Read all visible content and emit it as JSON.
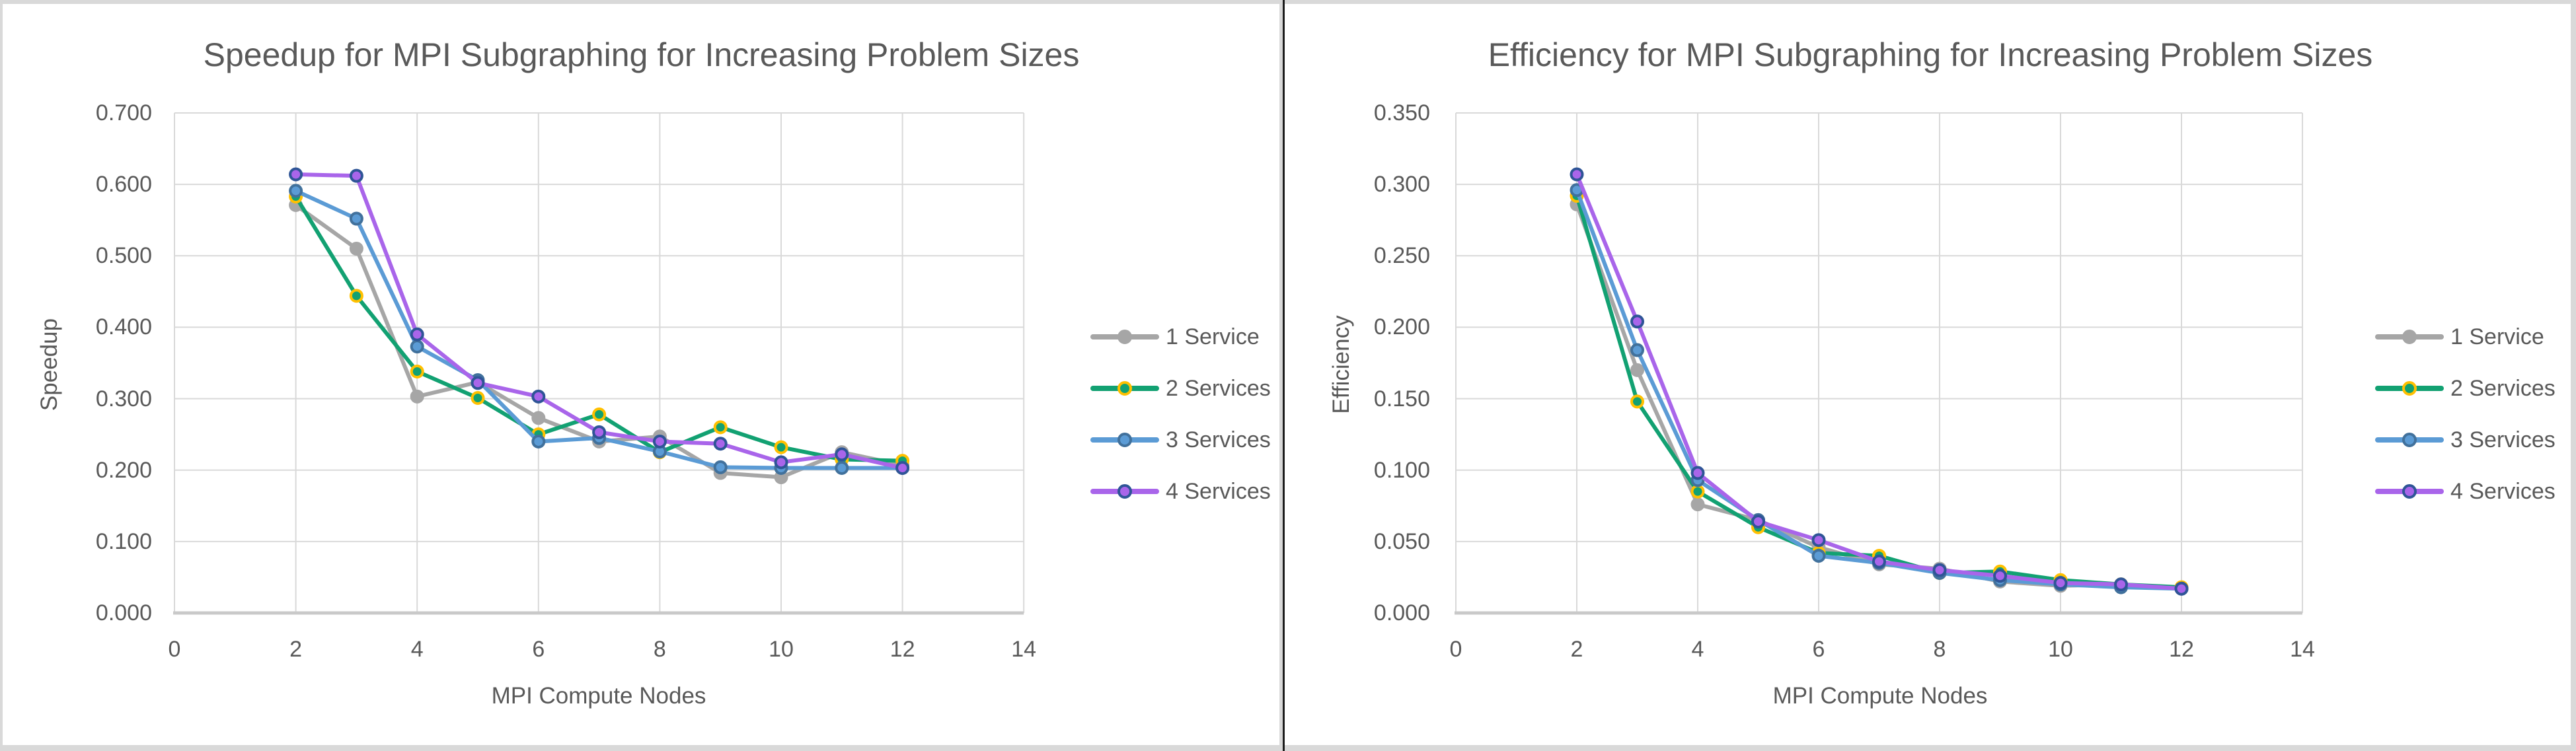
{
  "frame": {
    "background": "#ffffff",
    "border_color": "#d9d9d9",
    "divider_color": "#1c1c1c",
    "text_color": "#595959",
    "gridline_color": "#d9d9d9",
    "axis_line_color": "#c9c9c9"
  },
  "chart_data": [
    {
      "type": "line",
      "title": "Speedup for MPI Subgraphing for Increasing Problem Sizes",
      "x_axis": {
        "label": "MPI Compute Nodes",
        "min": 0,
        "max": 14,
        "ticks": [
          0,
          2,
          4,
          6,
          8,
          10,
          12,
          14
        ]
      },
      "y_axis": {
        "label": "Speedup",
        "min": 0,
        "max": 0.7,
        "tick_step": 0.1,
        "tick_labels": [
          "0.000",
          "0.100",
          "0.200",
          "0.300",
          "0.400",
          "0.500",
          "0.600",
          "0.700"
        ]
      },
      "legend_position": "right",
      "grid": true,
      "x": [
        2,
        3,
        4,
        5,
        6,
        7,
        8,
        9,
        10,
        11,
        12
      ],
      "series": [
        {
          "name": "1 Service",
          "line_color": "#A6A6A6",
          "marker_fill": "#A6A6A6",
          "marker_ring": "#A6A6A6",
          "values": [
            0.571,
            0.51,
            0.303,
            0.323,
            0.273,
            0.24,
            0.247,
            0.196,
            0.19,
            0.225,
            0.207
          ]
        },
        {
          "name": "2 Services",
          "line_color": "#12A172",
          "marker_fill": "#12A172",
          "marker_ring": "#FFC000",
          "values": [
            0.583,
            0.444,
            0.338,
            0.301,
            0.25,
            0.278,
            0.225,
            0.26,
            0.232,
            0.215,
            0.213
          ]
        },
        {
          "name": "3 Services",
          "line_color": "#5B9BD5",
          "marker_fill": "#5B9BD5",
          "marker_ring": "#41719C",
          "values": [
            0.591,
            0.552,
            0.373,
            0.326,
            0.24,
            0.245,
            0.226,
            0.204,
            0.203,
            0.203,
            0.203
          ]
        },
        {
          "name": "4 Services",
          "line_color": "#A965EA",
          "marker_fill": "#A965EA",
          "marker_ring": "#2F5597",
          "values": [
            0.614,
            0.612,
            0.39,
            0.322,
            0.303,
            0.253,
            0.24,
            0.237,
            0.211,
            0.222,
            0.203
          ]
        }
      ]
    },
    {
      "type": "line",
      "title": "Efficiency for MPI Subgraphing for Increasing Problem Sizes",
      "x_axis": {
        "label": "MPI Compute Nodes",
        "min": 0,
        "max": 14,
        "ticks": [
          0,
          2,
          4,
          6,
          8,
          10,
          12,
          14
        ]
      },
      "y_axis": {
        "label": "Efficiency",
        "min": 0,
        "max": 0.35,
        "tick_step": 0.05,
        "tick_labels": [
          "0.000",
          "0.050",
          "0.100",
          "0.150",
          "0.200",
          "0.250",
          "0.300",
          "0.350"
        ]
      },
      "legend_position": "right",
      "grid": true,
      "x": [
        2,
        3,
        4,
        5,
        6,
        7,
        8,
        9,
        10,
        11,
        12
      ],
      "series": [
        {
          "name": "1 Service",
          "line_color": "#A6A6A6",
          "marker_fill": "#A6A6A6",
          "marker_ring": "#A6A6A6",
          "values": [
            0.286,
            0.17,
            0.076,
            0.065,
            0.046,
            0.034,
            0.031,
            0.022,
            0.019,
            0.02,
            0.017
          ]
        },
        {
          "name": "2 Services",
          "line_color": "#12A172",
          "marker_fill": "#12A172",
          "marker_ring": "#FFC000",
          "values": [
            0.292,
            0.148,
            0.085,
            0.06,
            0.042,
            0.04,
            0.028,
            0.029,
            0.023,
            0.02,
            0.018
          ]
        },
        {
          "name": "3 Services",
          "line_color": "#5B9BD5",
          "marker_fill": "#5B9BD5",
          "marker_ring": "#41719C",
          "values": [
            0.296,
            0.184,
            0.093,
            0.065,
            0.04,
            0.035,
            0.028,
            0.023,
            0.02,
            0.018,
            0.017
          ]
        },
        {
          "name": "4 Services",
          "line_color": "#A965EA",
          "marker_fill": "#A965EA",
          "marker_ring": "#2F5597",
          "values": [
            0.307,
            0.204,
            0.098,
            0.064,
            0.051,
            0.036,
            0.03,
            0.026,
            0.021,
            0.02,
            0.017
          ]
        }
      ]
    }
  ]
}
